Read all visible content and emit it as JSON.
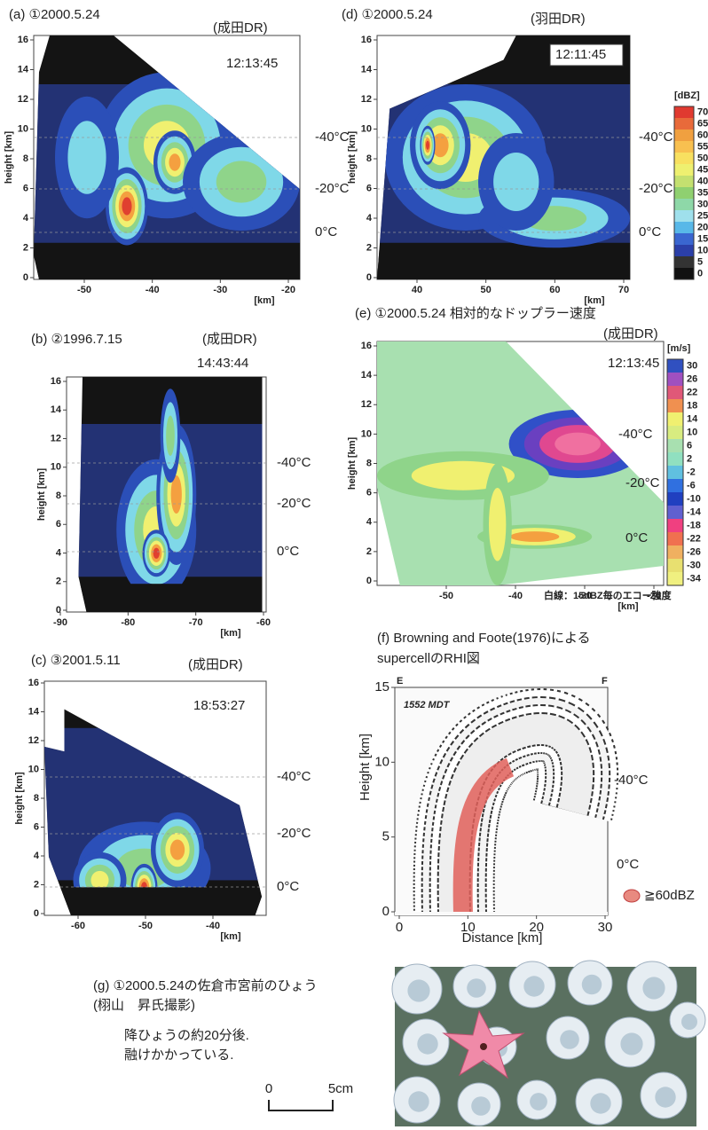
{
  "panels": [
    {
      "title": "(a) ①2000.5.24",
      "station": "(成田DR)",
      "time": "12:13:45",
      "y_label": "height [km]",
      "y_ticks": [
        0,
        2,
        4,
        6,
        8,
        10,
        12,
        14,
        16
      ],
      "x_ticks": [
        -50,
        -40,
        -30,
        -20
      ],
      "x_unit": "[km]",
      "temperatures": [
        "-40°C",
        "-20°C",
        "0°C"
      ]
    },
    {
      "title": "(b) ②1996.7.15",
      "station": "(成田DR)",
      "time": "14:43:44",
      "y_label": "height [km]",
      "y_ticks": [
        0,
        2,
        4,
        6,
        8,
        10,
        12,
        14,
        16
      ],
      "x_ticks": [
        -90,
        -80,
        -70,
        -60
      ],
      "x_unit": "[km]",
      "temperatures": [
        "-40°C",
        "-20°C",
        "0°C"
      ]
    },
    {
      "title": "(c) ③2001.5.11",
      "station": "(成田DR)",
      "time": "18:53:27",
      "y_label": "height [km]",
      "y_ticks": [
        0,
        2,
        4,
        6,
        8,
        10,
        12,
        14,
        16
      ],
      "x_ticks": [
        -60,
        -50,
        -40
      ],
      "x_unit": "[km]",
      "temperatures": [
        "-40°C",
        "-20°C",
        "0°C"
      ]
    },
    {
      "title": "(d) ①2000.5.24",
      "station": "(羽田DR)",
      "time": "12:11:45",
      "y_label": "height [km]",
      "y_ticks": [
        0,
        2,
        4,
        6,
        8,
        10,
        12,
        14,
        16
      ],
      "x_ticks": [
        40,
        50,
        60,
        70
      ],
      "x_unit": "[km]",
      "temperatures": [
        "-40°C",
        "-20°C",
        "0°C"
      ]
    },
    {
      "title": "(e) ①2000.5.24 相対的なドップラー速度",
      "station": "(成田DR)",
      "time": "12:13:45",
      "y_label": "height [km]",
      "y_ticks": [
        0,
        2,
        4,
        6,
        8,
        10,
        12,
        14,
        16
      ],
      "x_ticks": [
        -50,
        -40,
        -30,
        -20
      ],
      "x_unit": "[km]",
      "temperatures": [
        "-40°C",
        "-20°C",
        "0°C"
      ],
      "note": "白線：15dBZ毎のエコー強度"
    }
  ],
  "dbz_scale": {
    "unit": "[dBZ]",
    "labels": [
      70,
      65,
      60,
      55,
      50,
      45,
      40,
      35,
      30,
      25,
      20,
      15,
      10,
      5,
      0
    ]
  },
  "velocity_scale": {
    "unit": "[m/s]",
    "labels": [
      30,
      26,
      22,
      18,
      14,
      10,
      6,
      2,
      -2,
      -6,
      -10,
      -14,
      -18,
      -22,
      -26,
      -30,
      -34
    ]
  },
  "supercell": {
    "title_lines": [
      "(f) Browning and Foote(1976)による",
      "supercellのRHI図"
    ],
    "corner_left": "E",
    "corner_right": "F",
    "stamp": "1552 MDT",
    "y_label": "Height [km]",
    "y_ticks": [
      0,
      5,
      10,
      15
    ],
    "x_label": "Distance [km]",
    "x_ticks": [
      0,
      10,
      20,
      30
    ],
    "temperatures": [
      "-40°C",
      "0°C"
    ],
    "legend": "≧60dBZ"
  },
  "hail": {
    "title_lines": [
      "(g) ①2000.5.24の佐倉市宮前のひょう",
      "(栩山　昇氏撮影)"
    ],
    "caption_lines": [
      "降ひょうの約20分後.",
      "融けかかっている."
    ],
    "scale_labels": [
      "0",
      "5cm"
    ]
  }
}
